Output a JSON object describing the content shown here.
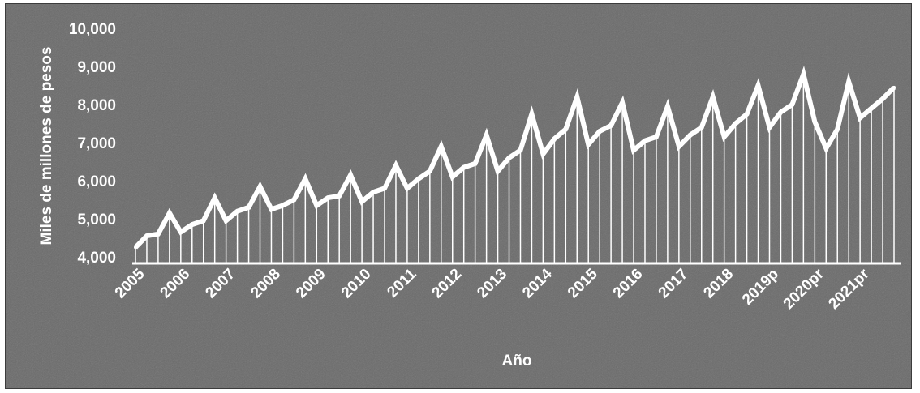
{
  "chart_data": {
    "type": "line",
    "title": "",
    "xlabel": "Año",
    "ylabel": "Miles de millones de pesos",
    "ylim": [
      4000,
      10000
    ],
    "yticks": [
      "4,000",
      "5,000",
      "6,000",
      "7,000",
      "8,000",
      "9,000",
      "10,000"
    ],
    "ytick_values": [
      4000,
      5000,
      6000,
      7000,
      8000,
      9000,
      10000
    ],
    "x_tick_labels": [
      "2005",
      "2006",
      "2007",
      "2008",
      "2009",
      "2010",
      "2011",
      "2012",
      "2013",
      "2014",
      "2015",
      "2016",
      "2017",
      "2018",
      "2019p",
      "2020pr",
      "2021pr"
    ],
    "points_per_year": 4,
    "grid": false,
    "drop_lines": true,
    "line_color": "#ffffff",
    "background_color": "#6a6a6a",
    "series": [
      {
        "values": [
          4250,
          4550,
          4600,
          5150,
          4650,
          4850,
          4950,
          5550,
          4950,
          5200,
          5300,
          5850,
          5250,
          5350,
          5500,
          6050,
          5350,
          5550,
          5600,
          6150,
          5450,
          5700,
          5800,
          6400,
          5800,
          6050,
          6250,
          6900,
          6100,
          6350,
          6450,
          7200,
          6250,
          6600,
          6800,
          7750,
          6700,
          7100,
          7350,
          8200,
          6950,
          7300,
          7450,
          8050,
          6800,
          7050,
          7150,
          7950,
          6900,
          7200,
          7400,
          8200,
          7150,
          7500,
          7750,
          8500,
          7400,
          7800,
          8000,
          8800,
          7550,
          6850,
          7350,
          8600,
          7650,
          7900,
          8150,
          8450
        ]
      }
    ]
  }
}
